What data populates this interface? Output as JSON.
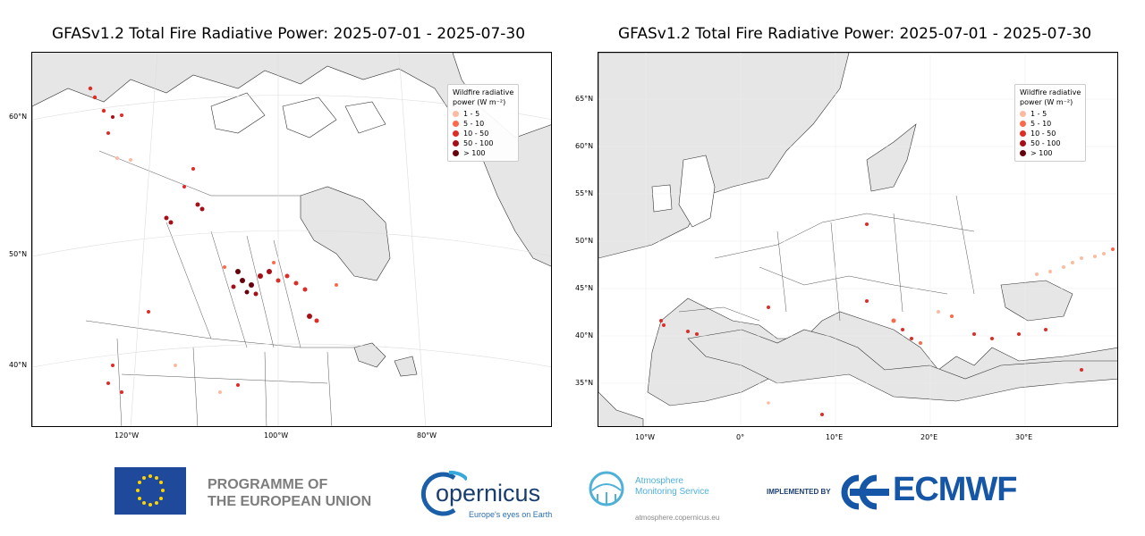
{
  "maps": [
    {
      "title": "GFASv1.2 Total Fire Radiative Power: 2025-07-01 - 2025-07-30",
      "region": "North America",
      "lat_ticks": [
        "60°N",
        "50°N",
        "40°N"
      ],
      "lon_ticks": [
        "120°W",
        "100°W",
        "80°W"
      ]
    },
    {
      "title": "GFASv1.2 Total Fire Radiative Power: 2025-07-01 - 2025-07-30",
      "region": "Europe",
      "lat_ticks": [
        "65°N",
        "60°N",
        "55°N",
        "50°N",
        "45°N",
        "40°N",
        "35°N"
      ],
      "lon_ticks": [
        "10°W",
        "0°",
        "10°E",
        "20°E",
        "30°E"
      ]
    }
  ],
  "legend": {
    "title_line1": "Wildfire radiative",
    "title_line2": "power (W m⁻²)",
    "classes": [
      {
        "label": "1 - 5",
        "color": "#fcbba1"
      },
      {
        "label": "5 - 10",
        "color": "#fb6a4a"
      },
      {
        "label": "10 - 50",
        "color": "#de2d26"
      },
      {
        "label": "50 - 100",
        "color": "#a50f15"
      },
      {
        "label": "> 100",
        "color": "#67000d"
      }
    ]
  },
  "footer": {
    "eu_line1": "PROGRAMME OF",
    "eu_line2": "THE EUROPEAN UNION",
    "copernicus": "opernicus",
    "copernicus_tag": "Europe's eyes on Earth",
    "ams_line1": "Atmosphere",
    "ams_line2": "Monitoring Service",
    "ams_url": "atmosphere.copernicus.eu",
    "implemented_by": "IMPLEMENTED BY",
    "ecmwf": "ECMWF"
  }
}
